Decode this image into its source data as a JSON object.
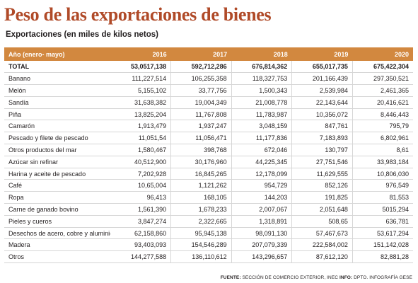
{
  "title": "Peso de las exportaciones de bienes",
  "subtitle": "Exportaciones (en miles de kilos netos)",
  "table": {
    "header_label": "Año (enero- mayo)",
    "years": [
      "2016",
      "2017",
      "2018",
      "2019",
      "2020"
    ],
    "total": {
      "label": "TOTAL",
      "values": [
        "53,0517,138",
        "592,712,286",
        "676,814,362",
        "655,017,735",
        "675,422,304"
      ]
    },
    "rows": [
      {
        "label": "Banano",
        "values": [
          "111,227,514",
          "106,255,358",
          "118,327,753",
          "201,166,439",
          "297,350,521"
        ]
      },
      {
        "label": "Melón",
        "values": [
          "5,155,102",
          "33,77,756",
          "1,500,343",
          "2,539,984",
          "2,461,365"
        ]
      },
      {
        "label": "Sandía",
        "values": [
          "31,638,382",
          "19,004,349",
          "21,008,778",
          "22,143,644",
          "20,416,621"
        ]
      },
      {
        "label": "Piña",
        "values": [
          "13,825,204",
          "11,767,808",
          "11,783,987",
          "10,356,072",
          "8,446,443"
        ]
      },
      {
        "label": "Camarón",
        "values": [
          "1,913,479",
          "1,937,247",
          "3,048,159",
          "847,761",
          "795,79"
        ]
      },
      {
        "label": "Pescado y filete de pescado",
        "values": [
          "11,051,54",
          "11,056,471",
          "11,177,836",
          "7,183,893",
          "6,802,961"
        ]
      },
      {
        "label": "Otros productos del mar",
        "values": [
          "1,580,467",
          "398,768",
          "672,046",
          "130,797",
          "8,61"
        ]
      },
      {
        "label": "Azúcar sin refinar",
        "values": [
          "40,512,900",
          "30,176,960",
          "44,225,345",
          "27,751,546",
          "33,983,184"
        ]
      },
      {
        "label": "Harina y aceite de pescado",
        "values": [
          "7,202,928",
          "16,845,265",
          "12,178,099",
          "11,629,555",
          "10,806,030"
        ]
      },
      {
        "label": "Café",
        "values": [
          "10,65,004",
          "1,121,262",
          "954,729",
          "852,126",
          "976,549"
        ]
      },
      {
        "label": "Ropa",
        "values": [
          "96,413",
          "168,105",
          "144,203",
          "191,825",
          "81,553"
        ]
      },
      {
        "label": "Carne de ganado bovino",
        "values": [
          "1,561,390",
          "1,678,233",
          "2,007,067",
          "2,051,648",
          "5015,294"
        ]
      },
      {
        "label": "Pieles y cueros",
        "values": [
          "3,847,274",
          "2,322,665",
          "1,318,891",
          "508,65",
          "636,781"
        ]
      },
      {
        "label": "Desechos de acero, cobre y aluminio",
        "values": [
          "62,158,860",
          "95,945,138",
          "98,091,130",
          "57,467,673",
          "53,617,294"
        ]
      },
      {
        "label": "Madera",
        "values": [
          "93,403,093",
          "154,546,289",
          "207,079,339",
          "222,584,002",
          "151,142,028"
        ]
      },
      {
        "label": "Otros",
        "values": [
          "144,277,588",
          "136,110,612",
          "143,296,657",
          "87,612,120",
          "82,881,28"
        ]
      }
    ]
  },
  "source": {
    "label": "FUENTE:",
    "text": "SECCIÓN DE COMERCIO EXTERIOR, INEC",
    "info_label": "INFO:",
    "info_text": "DPTO. INFOGRAFÍA GESE"
  }
}
